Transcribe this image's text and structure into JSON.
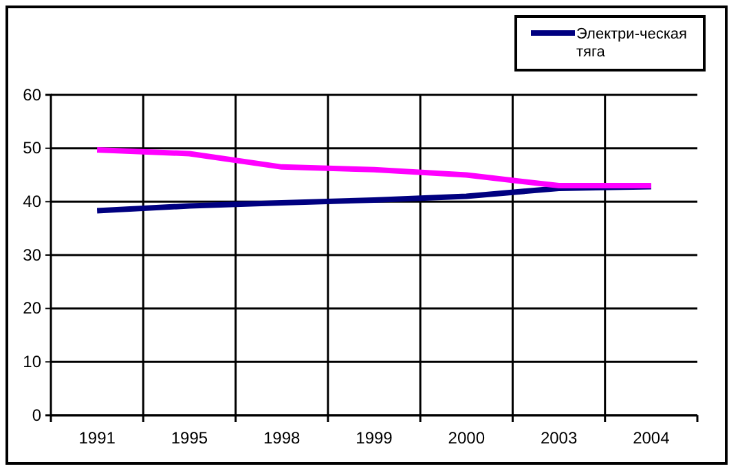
{
  "chart_data": {
    "type": "line",
    "categories": [
      "1991",
      "1995",
      "1998",
      "1999",
      "2000",
      "2003",
      "2004"
    ],
    "series": [
      {
        "name": "Электри-ческая тяга",
        "color": "#000080",
        "values": [
          38.3,
          39.2,
          39.8,
          40.3,
          41,
          42.5,
          42.8
        ]
      },
      {
        "color": "#ff00ff",
        "values": [
          49.7,
          49,
          46.5,
          46,
          45,
          43,
          43
        ]
      }
    ],
    "ylim": [
      0,
      60
    ],
    "yticks": [
      0,
      10,
      20,
      30,
      40,
      50,
      60
    ],
    "grid": true,
    "legend": "top right",
    "marker": "none",
    "line_style": "solid"
  }
}
